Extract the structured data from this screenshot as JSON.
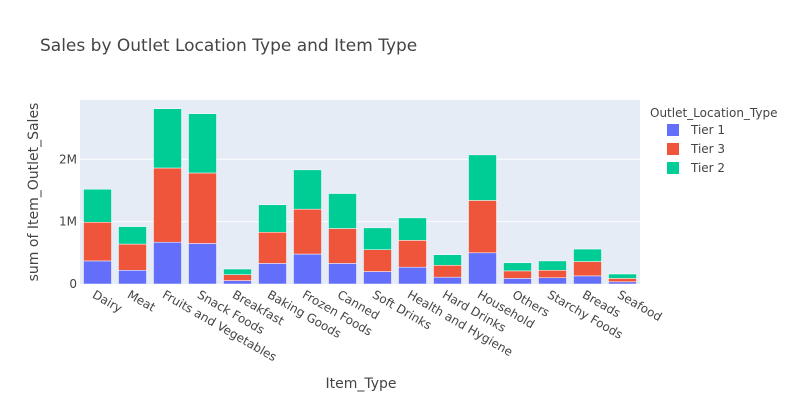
{
  "chart_data": {
    "type": "bar",
    "barmode": "stack",
    "title": "Sales by Outlet Location Type and Item Type",
    "xlabel": "Item_Type",
    "ylabel": "sum of Item_Outlet_Sales",
    "ylim": [
      0,
      2950000
    ],
    "yticks": [
      {
        "value": 0,
        "label": "0"
      },
      {
        "value": 1000000,
        "label": "1M"
      },
      {
        "value": 2000000,
        "label": "2M"
      }
    ],
    "grid": true,
    "legend_title": "Outlet_Location_Type",
    "legend_position": "top-right",
    "categories": [
      "Dairy",
      "Meat",
      "Fruits and Vegetables",
      "Snack Foods",
      "Breakfast",
      "Baking Goods",
      "Frozen Foods",
      "Canned",
      "Soft Drinks",
      "Health and Hygiene",
      "Hard Drinks",
      "Household",
      "Others",
      "Starchy Foods",
      "Breads",
      "Seafood"
    ],
    "series": [
      {
        "name": "Tier 1",
        "color": "#636efa",
        "values": [
          370000,
          220000,
          670000,
          650000,
          55000,
          330000,
          480000,
          330000,
          200000,
          270000,
          110000,
          500000,
          90000,
          100000,
          130000,
          35000
        ]
      },
      {
        "name": "Tier 3",
        "color": "#ef553b",
        "values": [
          620000,
          420000,
          1190000,
          1130000,
          95000,
          500000,
          720000,
          560000,
          350000,
          430000,
          190000,
          840000,
          120000,
          120000,
          230000,
          55000
        ]
      },
      {
        "name": "Tier 2",
        "color": "#00cc96",
        "values": [
          530000,
          280000,
          950000,
          950000,
          90000,
          440000,
          630000,
          560000,
          350000,
          360000,
          170000,
          730000,
          130000,
          150000,
          200000,
          70000
        ]
      }
    ]
  }
}
